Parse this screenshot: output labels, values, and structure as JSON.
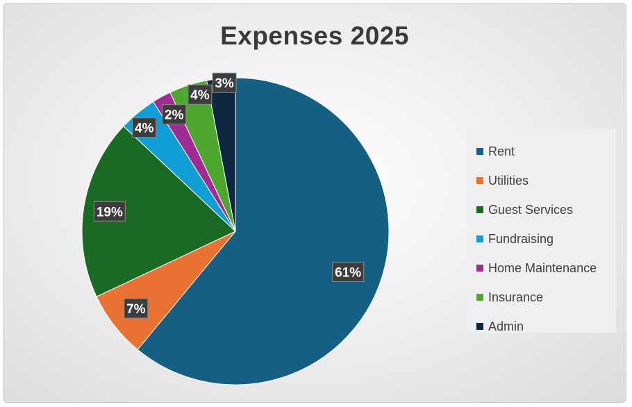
{
  "chart_data": {
    "type": "pie",
    "title": "Expenses 2025",
    "categories": [
      "Rent",
      "Utilities",
      "Guest Services",
      "Fundraising",
      "Home Maintenance",
      "Insurance",
      "Admin"
    ],
    "values": [
      61,
      7,
      19,
      4,
      2,
      4,
      3
    ],
    "data_labels": [
      "61%",
      "7%",
      "19%",
      "4%",
      "2%",
      "4%",
      "3%"
    ],
    "colors": [
      "#156082",
      "#E97132",
      "#196B24",
      "#0F9ED5",
      "#A02B93",
      "#4EA72E",
      "#0E2841"
    ],
    "start_angle": "12 o'clock",
    "direction": "clockwise",
    "legend": "right"
  }
}
